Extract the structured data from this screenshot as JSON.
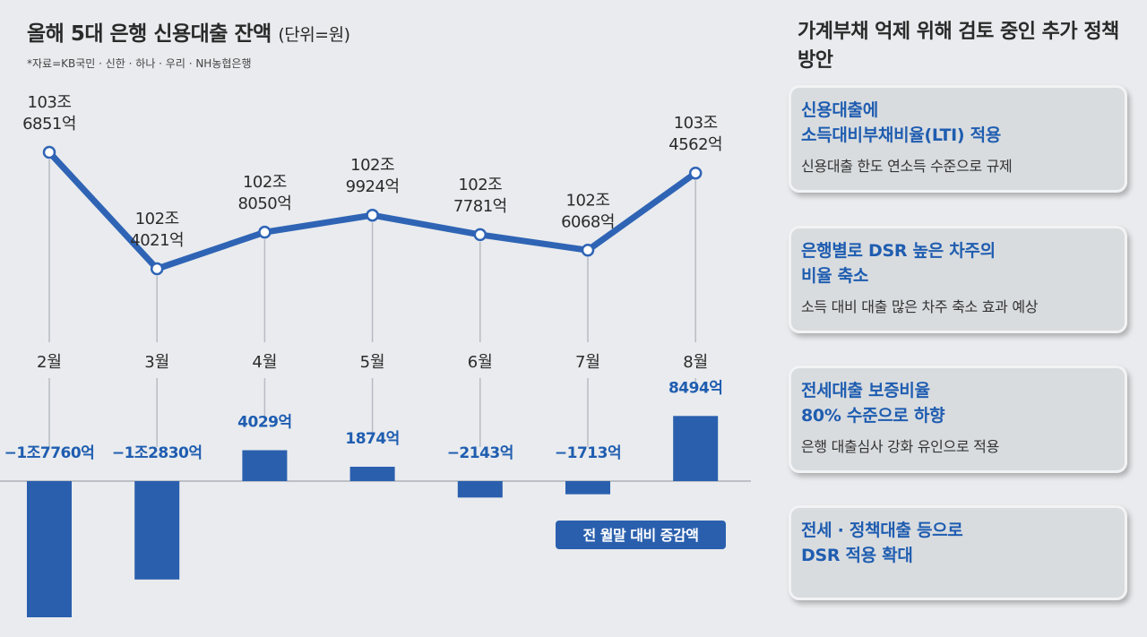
{
  "title": "올해 5대 은행 신용대출 잔액",
  "unit": "(단위=원)",
  "source": "*자료=KB국민 · 신한 · 하나 · 우리 · NH농협은행",
  "legend_badge": "전 월말 대비 증감액",
  "colors": {
    "accent": "#2f64b5",
    "bar": "#2a5fae",
    "label": "#1f5db0",
    "text": "#2b2b2b"
  },
  "chart_data": [
    {
      "type": "line",
      "categories": [
        "2월",
        "3월",
        "4월",
        "5월",
        "6월",
        "7월",
        "8월"
      ],
      "values": [
        1036851,
        1024021,
        1028050,
        1029924,
        1027781,
        1026068,
        1034562
      ],
      "value_unit": "억원",
      "data_labels": [
        [
          "103조",
          "6851억"
        ],
        [
          "102조",
          "4021억"
        ],
        [
          "102조",
          "8050억"
        ],
        [
          "102조",
          "9924억"
        ],
        [
          "102조",
          "7781억"
        ],
        [
          "102조",
          "6068억"
        ],
        [
          "103조",
          "4562억"
        ]
      ],
      "title": "",
      "xlabel": "",
      "ylabel": ""
    },
    {
      "type": "bar",
      "categories": [
        "2월",
        "3월",
        "4월",
        "5월",
        "6월",
        "7월",
        "8월"
      ],
      "values": [
        -17760,
        -12830,
        4029,
        1874,
        -2143,
        -1713,
        8494
      ],
      "value_unit": "억원",
      "data_labels": [
        "−1조7760억",
        "−1조2830억",
        "4029억",
        "1874억",
        "−2143억",
        "−1713억",
        "8494억"
      ],
      "legend": "전 월말 대비 증감액"
    }
  ],
  "panel": {
    "title": "가계부채 억제 위해 검토 중인 추가 정책 방안",
    "cards": [
      {
        "head": "신용대출에\n소득대비부채비율(LTI) 적용",
        "sub": "신용대출 한도 연소득 수준으로 규제"
      },
      {
        "head": "은행별로 DSR 높은 차주의\n비율 축소",
        "sub": "소득 대비 대출 많은 차주 축소 효과 예상"
      },
      {
        "head": "전세대출 보증비율\n80% 수준으로 하향",
        "sub": "은행 대출심사 강화 유인으로 적용"
      },
      {
        "head": "전세 · 정책대출 등으로\nDSR 적용 확대",
        "sub": ""
      }
    ]
  }
}
